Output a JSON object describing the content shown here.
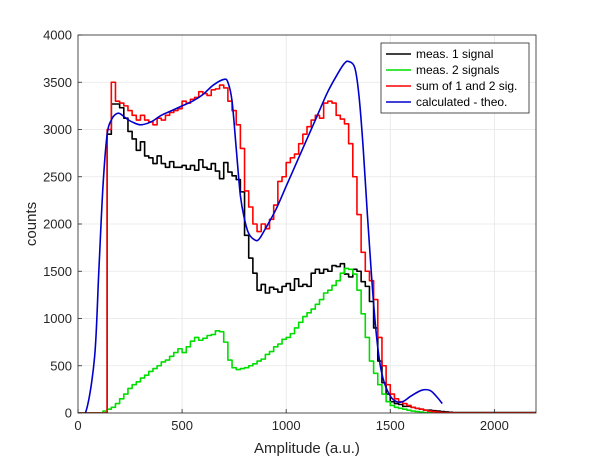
{
  "chart_data": {
    "type": "line",
    "title": "",
    "xlabel": "Amplitude (a.u.)",
    "ylabel": "counts",
    "xlim": [
      0,
      2200
    ],
    "ylim": [
      0,
      4000
    ],
    "xticks": [
      0,
      500,
      1000,
      1500,
      2000
    ],
    "yticks": [
      0,
      500,
      1000,
      1500,
      2000,
      2500,
      3000,
      3500,
      4000
    ],
    "grid": true,
    "legend_position": "top-right",
    "series": [
      {
        "name": "meas. 1 signal",
        "color": "#000000",
        "style": "step",
        "x": [
          0,
          120,
          140,
          160,
          180,
          200,
          220,
          240,
          260,
          280,
          300,
          320,
          340,
          360,
          380,
          400,
          420,
          440,
          460,
          480,
          500,
          520,
          540,
          560,
          580,
          600,
          620,
          640,
          660,
          680,
          700,
          720,
          740,
          760,
          780,
          800,
          820,
          840,
          860,
          880,
          900,
          920,
          940,
          960,
          980,
          1000,
          1020,
          1040,
          1060,
          1080,
          1100,
          1120,
          1140,
          1160,
          1180,
          1200,
          1220,
          1240,
          1260,
          1280,
          1300,
          1320,
          1340,
          1360,
          1380,
          1400,
          1420,
          1440,
          1460,
          1480,
          1500,
          1520,
          1540,
          1560,
          1580,
          1600,
          1620,
          1640,
          1660,
          1680,
          1700,
          1720,
          1740,
          1760,
          1780,
          1800,
          2200
        ],
        "values": [
          0,
          0,
          2950,
          3270,
          3270,
          3230,
          3120,
          2980,
          2900,
          2780,
          2870,
          2720,
          2700,
          2640,
          2720,
          2640,
          2600,
          2660,
          2600,
          2600,
          2620,
          2580,
          2620,
          2570,
          2680,
          2600,
          2580,
          2640,
          2560,
          2480,
          2650,
          2550,
          2510,
          2470,
          2340,
          1880,
          1640,
          1480,
          1300,
          1360,
          1270,
          1330,
          1310,
          1280,
          1340,
          1370,
          1300,
          1420,
          1340,
          1360,
          1340,
          1480,
          1520,
          1480,
          1520,
          1500,
          1560,
          1550,
          1580,
          1470,
          1440,
          1520,
          1500,
          1390,
          1340,
          1180,
          900,
          550,
          320,
          200,
          120,
          100,
          90,
          70,
          70,
          60,
          50,
          40,
          30,
          30,
          25,
          20,
          15,
          12,
          8,
          5,
          0
        ]
      },
      {
        "name": "meas. 2 signals",
        "color": "#00dd00",
        "style": "step",
        "x": [
          0,
          100,
          120,
          140,
          160,
          180,
          200,
          220,
          240,
          260,
          280,
          300,
          320,
          340,
          360,
          380,
          400,
          420,
          440,
          460,
          480,
          500,
          520,
          540,
          560,
          580,
          600,
          620,
          640,
          660,
          680,
          700,
          720,
          740,
          760,
          780,
          800,
          820,
          840,
          860,
          880,
          900,
          920,
          940,
          960,
          980,
          1000,
          1020,
          1040,
          1060,
          1080,
          1100,
          1120,
          1140,
          1160,
          1180,
          1200,
          1220,
          1240,
          1260,
          1280,
          1300,
          1320,
          1340,
          1360,
          1380,
          1400,
          1420,
          1440,
          1460,
          1480,
          1500,
          1520,
          1540,
          1560,
          1580,
          1600,
          1620,
          1640,
          1660,
          1680,
          1700,
          2200
        ],
        "values": [
          0,
          0,
          20,
          40,
          60,
          100,
          150,
          200,
          260,
          300,
          330,
          370,
          400,
          440,
          470,
          500,
          540,
          560,
          600,
          640,
          680,
          640,
          700,
          760,
          800,
          770,
          790,
          820,
          830,
          870,
          860,
          750,
          560,
          480,
          460,
          470,
          480,
          500,
          520,
          550,
          570,
          620,
          650,
          700,
          730,
          780,
          800,
          840,
          900,
          960,
          1020,
          1060,
          1100,
          1150,
          1200,
          1270,
          1300,
          1350,
          1400,
          1480,
          1530,
          1520,
          1470,
          1300,
          1050,
          800,
          550,
          420,
          300,
          200,
          120,
          80,
          60,
          50,
          40,
          30,
          20,
          15,
          10,
          5,
          2,
          0,
          0
        ]
      },
      {
        "name": "sum of 1 and 2 sig.",
        "color": "#ff0000",
        "style": "step",
        "x": [
          0,
          120,
          140,
          160,
          180,
          200,
          220,
          240,
          260,
          280,
          300,
          320,
          340,
          360,
          380,
          400,
          420,
          440,
          460,
          480,
          500,
          520,
          540,
          560,
          580,
          600,
          620,
          640,
          660,
          680,
          700,
          720,
          740,
          760,
          780,
          800,
          820,
          840,
          860,
          880,
          900,
          920,
          940,
          960,
          980,
          1000,
          1020,
          1040,
          1060,
          1080,
          1100,
          1120,
          1140,
          1160,
          1180,
          1200,
          1220,
          1240,
          1260,
          1280,
          1300,
          1320,
          1340,
          1360,
          1380,
          1400,
          1420,
          1440,
          1460,
          1480,
          1500,
          1520,
          1540,
          1560,
          1580,
          1600,
          1620,
          1640,
          1660,
          1680,
          1700,
          1720,
          1740,
          1760,
          1780,
          1800,
          2200
        ],
        "values": [
          0,
          0,
          3000,
          3500,
          3300,
          3280,
          3250,
          3200,
          3150,
          3100,
          3150,
          3100,
          3080,
          3050,
          3120,
          3100,
          3150,
          3180,
          3200,
          3220,
          3300,
          3280,
          3320,
          3340,
          3400,
          3380,
          3360,
          3420,
          3430,
          3470,
          3440,
          3300,
          3200,
          3050,
          2800,
          2350,
          2180,
          2000,
          1920,
          2000,
          1950,
          2050,
          2200,
          2450,
          2500,
          2650,
          2700,
          2740,
          2850,
          2950,
          3030,
          3100,
          3150,
          3120,
          3280,
          3300,
          3280,
          3150,
          3110,
          3060,
          2850,
          2500,
          2100,
          1700,
          1500,
          1400,
          1200,
          800,
          500,
          300,
          200,
          150,
          120,
          100,
          80,
          60,
          50,
          40,
          30,
          20,
          15,
          10,
          5,
          3,
          2,
          1,
          0
        ]
      },
      {
        "name": "calculated - theo.",
        "color": "#0000cc",
        "style": "smooth",
        "x": [
          0,
          40,
          80,
          100,
          120,
          140,
          160,
          180,
          200,
          230,
          260,
          300,
          350,
          400,
          450,
          500,
          550,
          600,
          650,
          700,
          720,
          740,
          760,
          780,
          800,
          820,
          850,
          870,
          900,
          950,
          1000,
          1050,
          1100,
          1150,
          1200,
          1250,
          1280,
          1300,
          1330,
          1350,
          1370,
          1390,
          1410,
          1430,
          1450,
          1470,
          1500,
          1530,
          1560,
          1600,
          1650,
          1690,
          1720,
          1750
        ],
        "values": [
          0,
          30,
          600,
          1500,
          2400,
          2950,
          3100,
          3160,
          3170,
          3120,
          3080,
          3050,
          3080,
          3150,
          3200,
          3250,
          3300,
          3370,
          3470,
          3530,
          3500,
          3300,
          2800,
          2300,
          2050,
          1900,
          1830,
          1840,
          1950,
          2150,
          2400,
          2650,
          2900,
          3150,
          3400,
          3600,
          3700,
          3720,
          3650,
          3350,
          2800,
          2100,
          1450,
          900,
          530,
          330,
          180,
          120,
          120,
          180,
          240,
          240,
          180,
          100
        ]
      }
    ]
  }
}
